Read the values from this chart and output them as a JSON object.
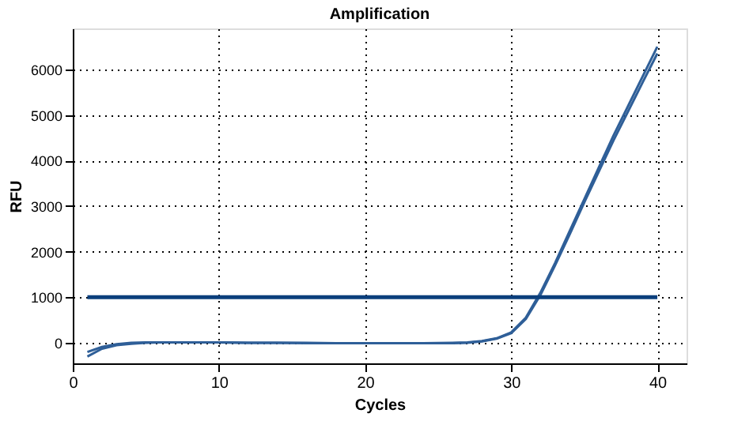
{
  "chart_data": {
    "type": "line",
    "title": "Amplification",
    "xlabel": "Cycles",
    "ylabel": "RFU",
    "x": [
      1,
      2,
      3,
      4,
      5,
      6,
      7,
      8,
      9,
      10,
      12,
      14,
      16,
      18,
      20,
      22,
      24,
      26,
      27,
      28,
      29,
      30,
      31,
      32,
      33,
      34,
      35,
      36,
      37,
      38,
      39,
      40
    ],
    "series": [
      {
        "color": "#2f5f98",
        "values": [
          -200,
          -90,
          -30,
          0,
          10,
          10,
          10,
          10,
          10,
          10,
          0,
          0,
          0,
          -10,
          -10,
          -10,
          -10,
          0,
          10,
          40,
          100,
          230,
          550,
          1100,
          1750,
          2450,
          3150,
          3850,
          4550,
          5200,
          5850,
          6500
        ]
      },
      {
        "color": "#2f5f98",
        "values": [
          -300,
          -130,
          -50,
          -20,
          0,
          10,
          10,
          10,
          10,
          10,
          0,
          0,
          -10,
          -10,
          -10,
          -10,
          -10,
          -10,
          0,
          30,
          90,
          210,
          520,
          1050,
          1700,
          2380,
          3080,
          3760,
          4440,
          5080,
          5720,
          6350
        ]
      }
    ],
    "xlim": [
      0,
      42
    ],
    "ylim": [
      -450,
      6900
    ],
    "xticks": [
      0,
      10,
      20,
      30,
      40
    ],
    "yticks": [
      0,
      1000,
      2000,
      3000,
      4000,
      5000,
      6000
    ],
    "ref_lines": [
      {
        "axis": "y",
        "value": 1000,
        "color": "#0b3f7c"
      }
    ],
    "grid": true,
    "marker": "none",
    "line_style": "solid"
  }
}
